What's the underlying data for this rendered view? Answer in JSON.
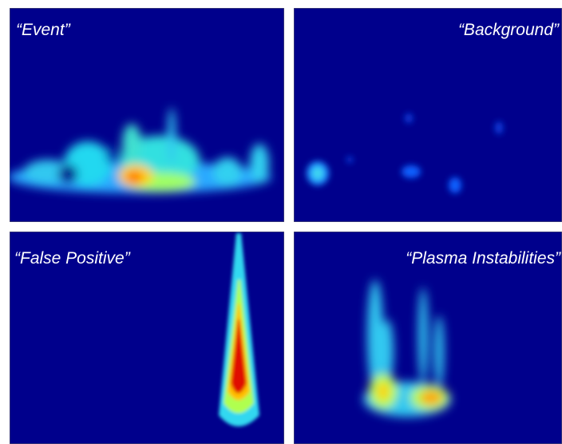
{
  "panels": [
    {
      "label": "“Event”"
    },
    {
      "label": "“Background”"
    },
    {
      "label": "“False Positive”"
    },
    {
      "label": "“Plasma Instabilities”"
    }
  ]
}
